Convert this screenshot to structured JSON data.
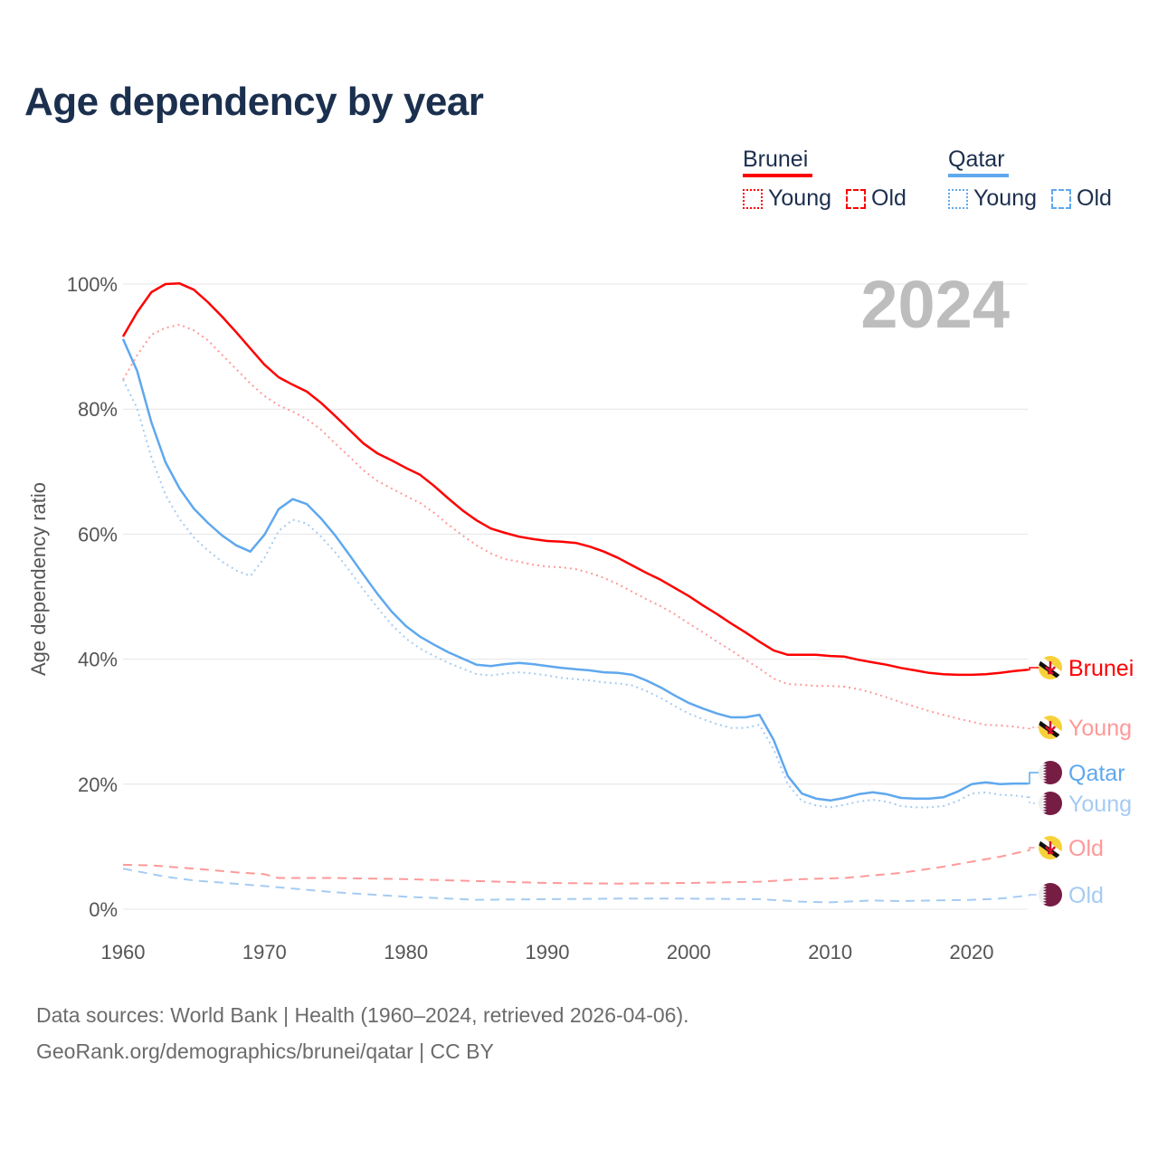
{
  "title": "Age dependency by year",
  "legend": {
    "groups": [
      {
        "name": "Brunei",
        "color": "#ff0000",
        "items": [
          "Young",
          "Old"
        ]
      },
      {
        "name": "Qatar",
        "color": "#5fa8ee",
        "items": [
          "Young",
          "Old"
        ]
      }
    ]
  },
  "year_watermark": "2024",
  "footer": {
    "line1": "Data sources: World Bank | Health (1960–2024, retrieved 2026-04-06).",
    "line2": "GeoRank.org/demographics/brunei/qatar | CC BY"
  },
  "chart_data": {
    "type": "line",
    "title": "Age dependency by year",
    "xlabel": "",
    "ylabel": "Age dependency ratio",
    "xlim": [
      1960,
      2024
    ],
    "ylim": [
      0,
      100
    ],
    "xticks": [
      "1960",
      "1970",
      "1980",
      "1990",
      "2000",
      "2010",
      "2020"
    ],
    "yticks": [
      "0%",
      "20%",
      "40%",
      "60%",
      "80%",
      "100%"
    ],
    "grid": true,
    "series": [
      {
        "name": "Brunei",
        "end_label": "Brunei",
        "style": "solid",
        "color": "#ff0000",
        "flag": "brunei",
        "x_start": 1960,
        "values": [
          91.6,
          95.5,
          98.7,
          100,
          100.1,
          99.1,
          97.1,
          94.8,
          92.3,
          89.7,
          87.1,
          85.1,
          83.9,
          82.8,
          81.0,
          78.9,
          76.7,
          74.5,
          72.9,
          71.8,
          70.6,
          69.5,
          67.7,
          65.7,
          63.8,
          62.2,
          60.9,
          60.2,
          59.6,
          59.2,
          58.9,
          58.8,
          58.6,
          58.0,
          57.2,
          56.2,
          55.0,
          53.8,
          52.7,
          51.4,
          50.1,
          48.6,
          47.2,
          45.7,
          44.3,
          42.8,
          41.4,
          40.7,
          40.7,
          40.7,
          40.5,
          40.4,
          39.9,
          39.5,
          39.1,
          38.6,
          38.2,
          37.8,
          37.6,
          37.5,
          37.5,
          37.6,
          37.8,
          38.1,
          38.3
        ]
      },
      {
        "name": "Brunei Young",
        "end_label": "Young",
        "style": "dotted",
        "color": "#ff9999",
        "flag": "brunei",
        "x_start": 1960,
        "values": [
          84.7,
          88.6,
          91.9,
          93.0,
          93.5,
          92.6,
          91.0,
          88.7,
          86.4,
          84.1,
          82.1,
          80.6,
          79.6,
          78.4,
          76.7,
          74.5,
          72.4,
          70.2,
          68.5,
          67.3,
          66.1,
          65.0,
          63.4,
          61.5,
          59.8,
          58.2,
          56.9,
          56.0,
          55.6,
          55.1,
          54.8,
          54.7,
          54.4,
          53.8,
          53.0,
          52.0,
          50.8,
          49.6,
          48.5,
          47.2,
          45.7,
          44.3,
          42.8,
          41.4,
          39.9,
          38.5,
          36.9,
          36.0,
          35.9,
          35.7,
          35.7,
          35.6,
          35.2,
          34.6,
          33.9,
          33.1,
          32.4,
          31.7,
          31.1,
          30.5,
          30.0,
          29.5,
          29.4,
          29.2,
          28.9
        ]
      },
      {
        "name": "Qatar",
        "end_label": "Qatar",
        "style": "solid",
        "color": "#5fa8ee",
        "flag": "qatar",
        "x_start": 1960,
        "values": [
          91.2,
          86.1,
          77.9,
          71.5,
          67.3,
          64.1,
          61.8,
          59.8,
          58.2,
          57.2,
          59.9,
          64.0,
          65.6,
          64.8,
          62.5,
          59.8,
          56.7,
          53.5,
          50.4,
          47.6,
          45.3,
          43.6,
          42.3,
          41.1,
          40.1,
          39.1,
          38.9,
          39.2,
          39.4,
          39.2,
          38.9,
          38.6,
          38.4,
          38.2,
          37.9,
          37.8,
          37.5,
          36.6,
          35.5,
          34.2,
          33.0,
          32.1,
          31.3,
          30.7,
          30.7,
          31.1,
          27.1,
          21.3,
          18.5,
          17.7,
          17.4,
          17.8,
          18.4,
          18.7,
          18.4,
          17.8,
          17.7,
          17.7,
          17.9,
          18.8,
          20.0,
          20.3,
          20.0,
          20.1,
          20.1
        ]
      },
      {
        "name": "Qatar Young",
        "end_label": "Young",
        "style": "dotted",
        "color": "#a5cbf3",
        "flag": "qatar",
        "x_start": 1960,
        "values": [
          84.7,
          80.1,
          72.3,
          66.3,
          62.4,
          59.5,
          57.4,
          55.6,
          54.2,
          53.3,
          56.2,
          60.5,
          62.3,
          61.7,
          59.6,
          57.1,
          54.2,
          51.1,
          48.2,
          45.5,
          43.3,
          41.7,
          40.5,
          39.4,
          38.5,
          37.6,
          37.4,
          37.7,
          37.9,
          37.7,
          37.4,
          37.0,
          36.8,
          36.6,
          36.3,
          36.1,
          35.8,
          34.9,
          33.8,
          32.5,
          31.3,
          30.4,
          29.6,
          29.0,
          29.0,
          29.5,
          25.6,
          20.0,
          17.3,
          16.6,
          16.3,
          16.7,
          17.2,
          17.5,
          17.2,
          16.5,
          16.3,
          16.3,
          16.5,
          17.3,
          18.5,
          18.7,
          18.3,
          18.2,
          17.9
        ]
      },
      {
        "name": "Brunei Old",
        "end_label": "Old",
        "style": "dashed",
        "color": "#ff9999",
        "flag": "brunei",
        "x": [
          1960,
          1962,
          1965,
          1968,
          1970,
          1971,
          1975,
          1980,
          1985,
          1990,
          1995,
          2000,
          2005,
          2008,
          2011,
          2013,
          2015,
          2018,
          2020,
          2022,
          2024
        ],
        "values": [
          7.1,
          7.0,
          6.5,
          5.9,
          5.6,
          5.0,
          5.0,
          4.8,
          4.5,
          4.2,
          4.1,
          4.2,
          4.4,
          4.8,
          5.0,
          5.4,
          5.8,
          6.8,
          7.6,
          8.4,
          9.4
        ]
      },
      {
        "name": "Qatar Old",
        "end_label": "Old",
        "style": "dashed",
        "color": "#a5cbf3",
        "flag": "qatar",
        "x": [
          1960,
          1963,
          1965,
          1970,
          1975,
          1980,
          1985,
          1990,
          1995,
          2000,
          2005,
          2008,
          2010,
          2013,
          2015,
          2020,
          2022,
          2024
        ],
        "values": [
          6.5,
          5.2,
          4.6,
          3.7,
          2.7,
          2.0,
          1.5,
          1.6,
          1.7,
          1.7,
          1.6,
          1.2,
          1.1,
          1.4,
          1.3,
          1.5,
          1.7,
          2.2
        ]
      }
    ]
  }
}
